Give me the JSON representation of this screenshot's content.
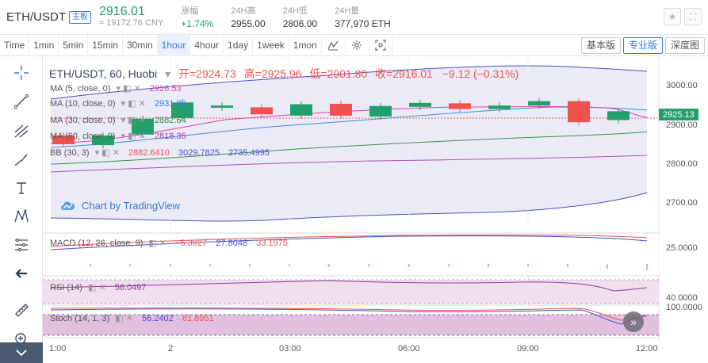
{
  "header": {
    "pair": "ETH/USDT",
    "badge": "主板",
    "price": "2916.01",
    "price_cny": "≈ 19172.76 CNY",
    "stats": [
      {
        "label": "涨幅",
        "value": "+1.74%",
        "color": "green"
      },
      {
        "label": "24H高",
        "value": "2955.00",
        "color": ""
      },
      {
        "label": "24H低",
        "value": "2806.00",
        "color": ""
      },
      {
        "label": "24H量",
        "value": "377,970 ETH",
        "color": ""
      }
    ],
    "icons": [
      "star-icon",
      "fullscreen-icon"
    ]
  },
  "toolbar": {
    "timeframes": [
      "Time",
      "1min",
      "5min",
      "15min",
      "30min",
      "1hour",
      "4hour",
      "1day",
      "1week",
      "1mon"
    ],
    "active_timeframe": "1hour",
    "icons": [
      "indicator-icon",
      "settings-icon",
      "screenshot-icon"
    ],
    "views": [
      "基本版",
      "专业版",
      "深度图"
    ],
    "active_view": "专业版"
  },
  "left_tools": [
    "crosshair-icon",
    "trendline-icon",
    "pitchfork-icon",
    "brush-icon",
    "text-icon",
    "pattern-icon",
    "fibonacci-icon",
    "back-arrow-icon",
    "ruler-icon",
    "zoom-icon",
    "collapse-icon"
  ],
  "chart": {
    "title": "ETH/USDT, 60, Huobi",
    "ohlc": {
      "open_label": "开=",
      "open": "2924.73",
      "high_label": "高=",
      "high": "2925.96",
      "low_label": "低=",
      "low": "2901.80",
      "close_label": "收=",
      "close": "2916.01",
      "change": "−9.12 (−0.31%)"
    },
    "indicators": [
      {
        "name": "MA (5, close, 0)",
        "value": "2926.53",
        "color": "#e040b0"
      },
      {
        "name": "MA (10, close, 0)",
        "value": "2931.86",
        "color": "#2f7fd8"
      },
      {
        "name": "MA (30, close, 0)",
        "value": "2882.64",
        "color": "#2f8f3f"
      },
      {
        "name": "MA (60, close, 0)",
        "value": "2818.35",
        "color": "#9c3fa0"
      }
    ],
    "bb": {
      "name": "BB (30, 3)",
      "v1": "2882.6410",
      "v2": "3029.7825",
      "v3": "2735.4995"
    },
    "watermark": "Chart by TradingView",
    "price_axis": [
      "3000.00",
      "2900.00",
      "2800.00",
      "2700.00"
    ],
    "last_price": "2925.13",
    "macd": {
      "name": "MACD (12, 26, close, 9)",
      "v1": "−5.3927",
      "v2": "27.8048",
      "v3": "33.1975",
      "axis": "25.0000"
    },
    "rsi": {
      "name": "RSI (14)",
      "value": "56.0497",
      "axis": "40.0000"
    },
    "stoch": {
      "name": "Stoch (14, 1, 3)",
      "v1": "56.2402",
      "v2": "61.8951",
      "axis": "100.0000"
    },
    "time_axis": [
      "1:00",
      "2",
      "03:00",
      "06:00",
      "09:00",
      "12:00"
    ]
  },
  "colors": {
    "up": "#22a06b",
    "down": "#ef5350",
    "accent": "#3a7bd5"
  },
  "chart_data": {
    "type": "candlestick",
    "candles": [
      {
        "open": 2870,
        "close": 2850
      },
      {
        "open": 2848,
        "close": 2870
      },
      {
        "open": 2872,
        "close": 2908
      },
      {
        "open": 2910,
        "close": 2945
      },
      {
        "open": 2933,
        "close": 2938
      },
      {
        "open": 2934,
        "close": 2918
      },
      {
        "open": 2915,
        "close": 2941
      },
      {
        "open": 2942,
        "close": 2915
      },
      {
        "open": 2913,
        "close": 2937
      },
      {
        "open": 2935,
        "close": 2944
      },
      {
        "open": 2943,
        "close": 2930
      },
      {
        "open": 2930,
        "close": 2938
      },
      {
        "open": 2938,
        "close": 2948
      },
      {
        "open": 2948,
        "close": 2900
      },
      {
        "open": 2905,
        "close": 2925
      }
    ],
    "ylim": [
      2650,
      3050
    ]
  }
}
